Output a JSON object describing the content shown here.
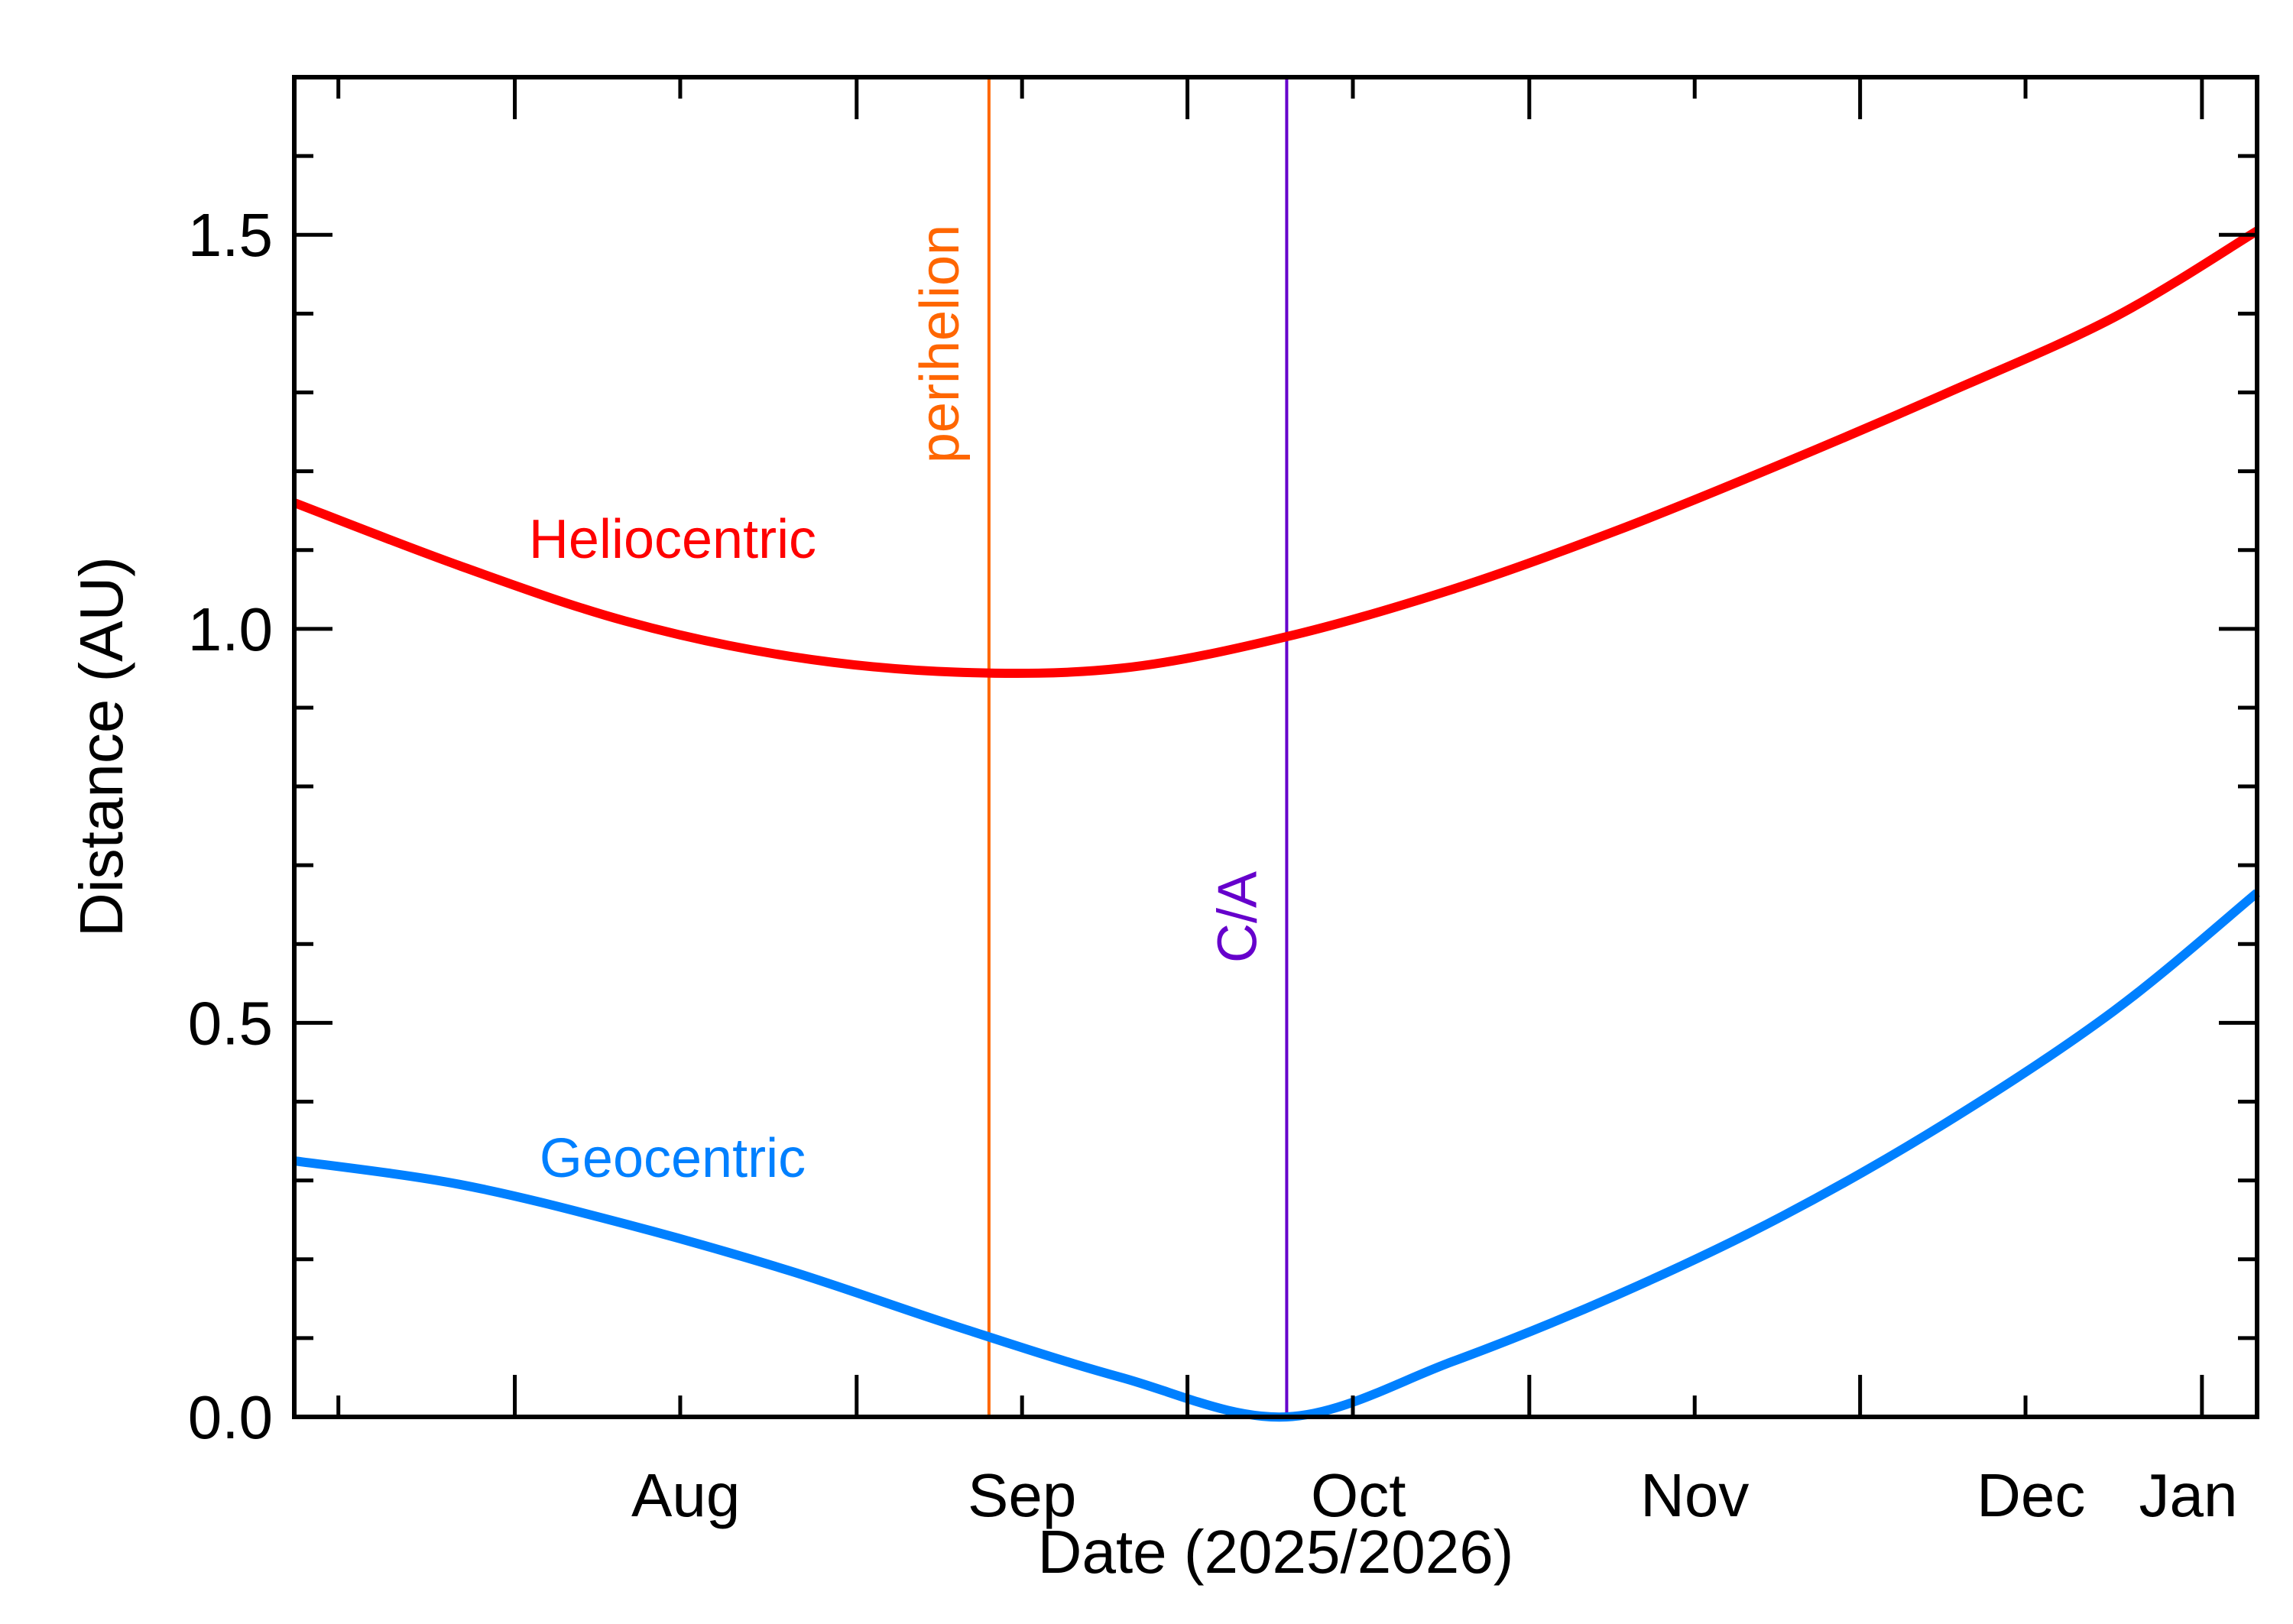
{
  "chart_data": {
    "type": "line",
    "title": "",
    "xlabel": "Date (2025/2026)",
    "ylabel": "Distance (AU)",
    "xlim": [
      "2025-07-12",
      "2026-01-06"
    ],
    "ylim": [
      0.0,
      1.7
    ],
    "yticks": [
      {
        "value": 0.0,
        "label": "0.0"
      },
      {
        "value": 0.5,
        "label": "0.5"
      },
      {
        "value": 1.0,
        "label": "1.0"
      },
      {
        "value": 1.5,
        "label": "1.5"
      }
    ],
    "yminor_step": 0.1,
    "xticks": [
      {
        "date": "2025-08-01",
        "label": "Aug"
      },
      {
        "date": "2025-09-01",
        "label": "Sep"
      },
      {
        "date": "2025-10-01",
        "label": "Oct"
      },
      {
        "date": "2025-11-01",
        "label": "Nov"
      },
      {
        "date": "2025-12-01",
        "label": "Dec"
      },
      {
        "date": "2026-01-01",
        "label": "Jan"
      }
    ],
    "xminor": [
      "2025-07-16",
      "2025-08-16",
      "2025-09-16",
      "2025-10-16",
      "2025-11-16",
      "2025-12-16"
    ],
    "grid": false,
    "legend": "none",
    "series": [
      {
        "name": "Heliocentric",
        "color": "#ff0000",
        "label": "Heliocentric",
        "x": [
          "2025-07-12",
          "2025-07-27",
          "2025-08-11",
          "2025-08-26",
          "2025-09-10",
          "2025-09-25",
          "2025-10-10",
          "2025-10-25",
          "2025-11-09",
          "2025-11-24",
          "2025-12-09",
          "2025-12-24",
          "2026-01-06"
        ],
        "y": [
          1.16,
          1.08,
          1.01,
          0.965,
          0.945,
          0.95,
          0.99,
          1.05,
          1.125,
          1.21,
          1.3,
          1.395,
          1.505
        ]
      },
      {
        "name": "Geocentric",
        "color": "#0080ff",
        "label": "Geocentric",
        "x": [
          "2025-07-12",
          "2025-07-27",
          "2025-08-11",
          "2025-08-26",
          "2025-09-10",
          "2025-09-25",
          "2025-10-10",
          "2025-10-25",
          "2025-11-09",
          "2025-11-24",
          "2025-12-09",
          "2025-12-24",
          "2026-01-06"
        ],
        "y": [
          0.325,
          0.295,
          0.245,
          0.185,
          0.115,
          0.05,
          0.0,
          0.07,
          0.155,
          0.255,
          0.375,
          0.515,
          0.665
        ]
      }
    ],
    "markers": [
      {
        "label": "perihelion",
        "date": "2025-09-13",
        "color": "#ff6600"
      },
      {
        "label": "C/A",
        "date": "2025-10-10",
        "color": "#6600cc"
      }
    ]
  }
}
